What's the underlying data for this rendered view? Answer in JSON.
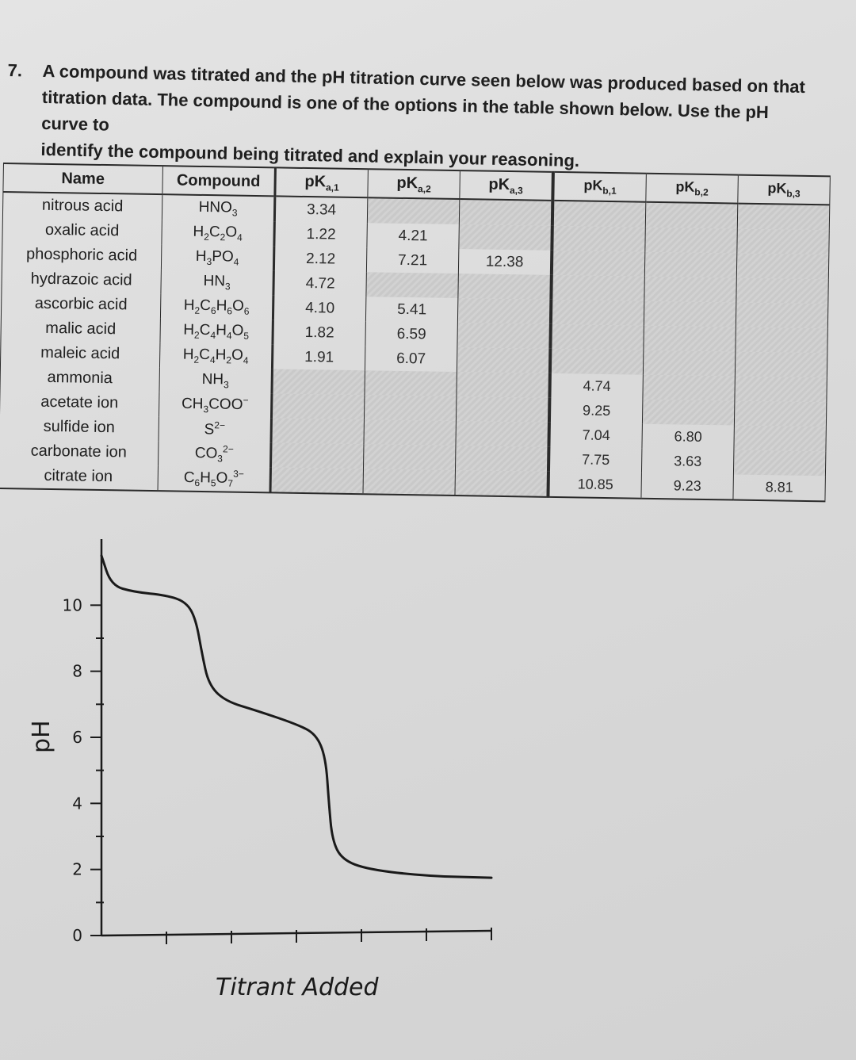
{
  "question": {
    "number": "7.",
    "lines": [
      "A compound was titrated and the pH titration curve seen below was produced based on that",
      "titration data. The compound is one of the options in the table shown below.  Use the pH curve to",
      "identify the compound being titrated and explain your reasoning."
    ]
  },
  "table": {
    "headers": [
      "Name",
      "Compound",
      "pKa,1",
      "pKa,2",
      "pKa,3",
      "pKb,1",
      "pKb,2",
      "pKb,3"
    ],
    "rows": [
      {
        "name": "nitrous acid",
        "compound": "HNO3",
        "pka1": "3.34",
        "pka2": "",
        "pka3": "",
        "pkb1": "",
        "pkb2": "",
        "pkb3": ""
      },
      {
        "name": "oxalic acid",
        "compound": "H2C2O4",
        "pka1": "1.22",
        "pka2": "4.21",
        "pka3": "",
        "pkb1": "",
        "pkb2": "",
        "pkb3": ""
      },
      {
        "name": "phosphoric acid",
        "compound": "H3PO4",
        "pka1": "2.12",
        "pka2": "7.21",
        "pka3": "12.38",
        "pkb1": "",
        "pkb2": "",
        "pkb3": ""
      },
      {
        "name": "hydrazoic acid",
        "compound": "HN3",
        "pka1": "4.72",
        "pka2": "",
        "pka3": "",
        "pkb1": "",
        "pkb2": "",
        "pkb3": ""
      },
      {
        "name": "ascorbic acid",
        "compound": "H2C6H6O6",
        "pka1": "4.10",
        "pka2": "5.41",
        "pka3": "",
        "pkb1": "",
        "pkb2": "",
        "pkb3": ""
      },
      {
        "name": "malic acid",
        "compound": "H2C4H4O5",
        "pka1": "1.82",
        "pka2": "6.59",
        "pka3": "",
        "pkb1": "",
        "pkb2": "",
        "pkb3": ""
      },
      {
        "name": "maleic acid",
        "compound": "H2C4H2O4",
        "pka1": "1.91",
        "pka2": "6.07",
        "pka3": "",
        "pkb1": "",
        "pkb2": "",
        "pkb3": ""
      },
      {
        "name": "ammonia",
        "compound": "NH3",
        "pka1": "",
        "pka2": "",
        "pka3": "",
        "pkb1": "4.74",
        "pkb2": "",
        "pkb3": ""
      },
      {
        "name": "acetate ion",
        "compound": "CH3COO−",
        "pka1": "",
        "pka2": "",
        "pka3": "",
        "pkb1": "9.25",
        "pkb2": "",
        "pkb3": ""
      },
      {
        "name": "sulfide ion",
        "compound": "S2−",
        "pka1": "",
        "pka2": "",
        "pka3": "",
        "pkb1": "7.04",
        "pkb2": "6.80",
        "pkb3": ""
      },
      {
        "name": "carbonate ion",
        "compound": "CO32−",
        "pka1": "",
        "pka2": "",
        "pka3": "",
        "pkb1": "7.75",
        "pkb2": "3.63",
        "pkb3": ""
      },
      {
        "name": "citrate ion",
        "compound": "C6H5O73−",
        "pka1": "",
        "pka2": "",
        "pka3": "",
        "pkb1": "10.85",
        "pkb2": "9.23",
        "pkb3": "8.81"
      }
    ]
  },
  "chart_data": {
    "type": "line",
    "title": "",
    "xlabel": "Titrant Added",
    "ylabel": "pH",
    "yticks": [
      "0",
      "2",
      "4",
      "6",
      "8",
      "10"
    ],
    "ylim": [
      0,
      12
    ],
    "xlim": [
      0,
      6
    ],
    "x_ticks_count": 6,
    "series": [
      {
        "points": [
          [
            0.0,
            11.5
          ],
          [
            0.15,
            10.6
          ],
          [
            0.5,
            10.4
          ],
          [
            1.0,
            10.3
          ],
          [
            1.3,
            10.1
          ],
          [
            1.45,
            9.6
          ],
          [
            1.55,
            8.5
          ],
          [
            1.65,
            7.6
          ],
          [
            1.9,
            7.1
          ],
          [
            2.4,
            6.8
          ],
          [
            3.0,
            6.4
          ],
          [
            3.3,
            6.1
          ],
          [
            3.45,
            5.4
          ],
          [
            3.5,
            4.0
          ],
          [
            3.55,
            2.9
          ],
          [
            3.7,
            2.3
          ],
          [
            4.1,
            2.0
          ],
          [
            5.0,
            1.8
          ],
          [
            6.0,
            1.75
          ]
        ]
      }
    ]
  }
}
